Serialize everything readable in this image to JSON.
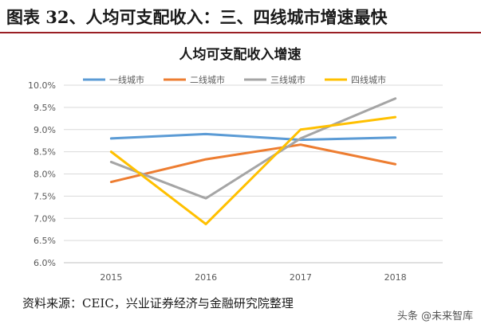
{
  "figure_title": "图表 32、人均可支配收入：三、四线城市增速最快",
  "source_note": "资料来源：CEIC，兴业证券经济与金融研究院整理",
  "watermark": "头条 @未来智库",
  "chart_data": {
    "type": "line",
    "title": "人均可支配收入增速",
    "xlabel": "",
    "ylabel": "",
    "categories": [
      "2015",
      "2016",
      "2017",
      "2018"
    ],
    "ylim": [
      6.0,
      10.0
    ],
    "yticks": [
      "6.0%",
      "6.5%",
      "7.0%",
      "7.5%",
      "8.0%",
      "8.5%",
      "9.0%",
      "9.5%",
      "10.0%"
    ],
    "grid": true,
    "legend_position": "top",
    "series": [
      {
        "name": "一线城市",
        "color": "#5b9bd5",
        "values": [
          8.8,
          8.9,
          8.77,
          8.82
        ]
      },
      {
        "name": "二线城市",
        "color": "#ed7d31",
        "values": [
          7.82,
          8.33,
          8.66,
          8.22
        ]
      },
      {
        "name": "三线城市",
        "color": "#a5a5a5",
        "values": [
          8.27,
          7.45,
          8.8,
          9.7
        ]
      },
      {
        "name": "四线城市",
        "color": "#ffc000",
        "values": [
          8.5,
          6.87,
          9.0,
          9.28
        ]
      }
    ]
  }
}
